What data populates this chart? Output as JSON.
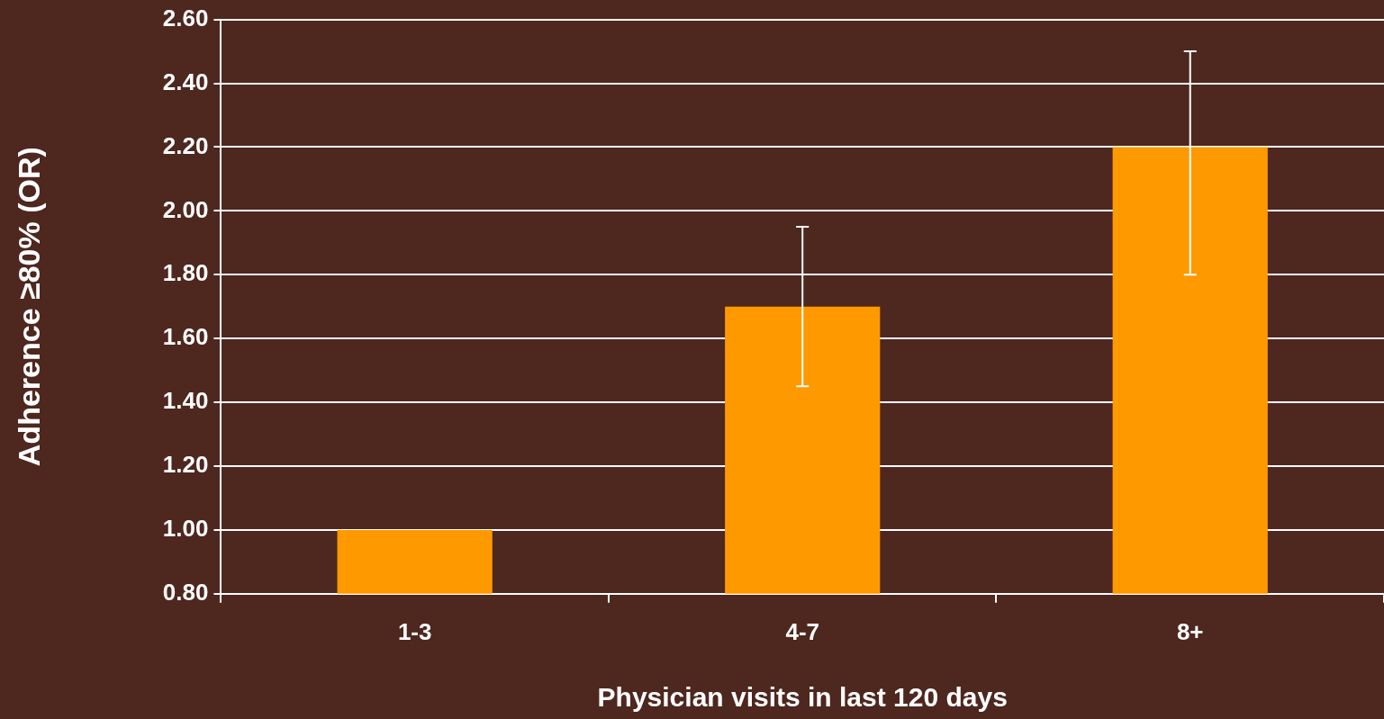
{
  "chart_data": {
    "type": "bar",
    "xlabel": "Physician visits in last 120 days",
    "ylabel": "Adherence ≥80% (OR)",
    "categories": [
      "1-3",
      "4-7",
      "8+"
    ],
    "values": [
      1.0,
      1.7,
      2.2
    ],
    "errors": [
      null,
      [
        1.45,
        1.95
      ],
      [
        1.8,
        2.5
      ]
    ],
    "color": "#ff9900",
    "ylim": [
      0.8,
      2.6
    ],
    "yticks": [
      {
        "value": 0.8,
        "label": "0.80"
      },
      {
        "value": 1.0,
        "label": "1.00"
      },
      {
        "value": 1.2,
        "label": "1.20"
      },
      {
        "value": 1.4,
        "label": "1.40"
      },
      {
        "value": 1.6,
        "label": "1.60"
      },
      {
        "value": 1.8,
        "label": "1.80"
      },
      {
        "value": 2.0,
        "label": "2.00"
      },
      {
        "value": 2.2,
        "label": "2.20"
      },
      {
        "value": 2.4,
        "label": "2.40"
      },
      {
        "value": 2.6,
        "label": "2.60"
      }
    ],
    "grid": "y"
  }
}
